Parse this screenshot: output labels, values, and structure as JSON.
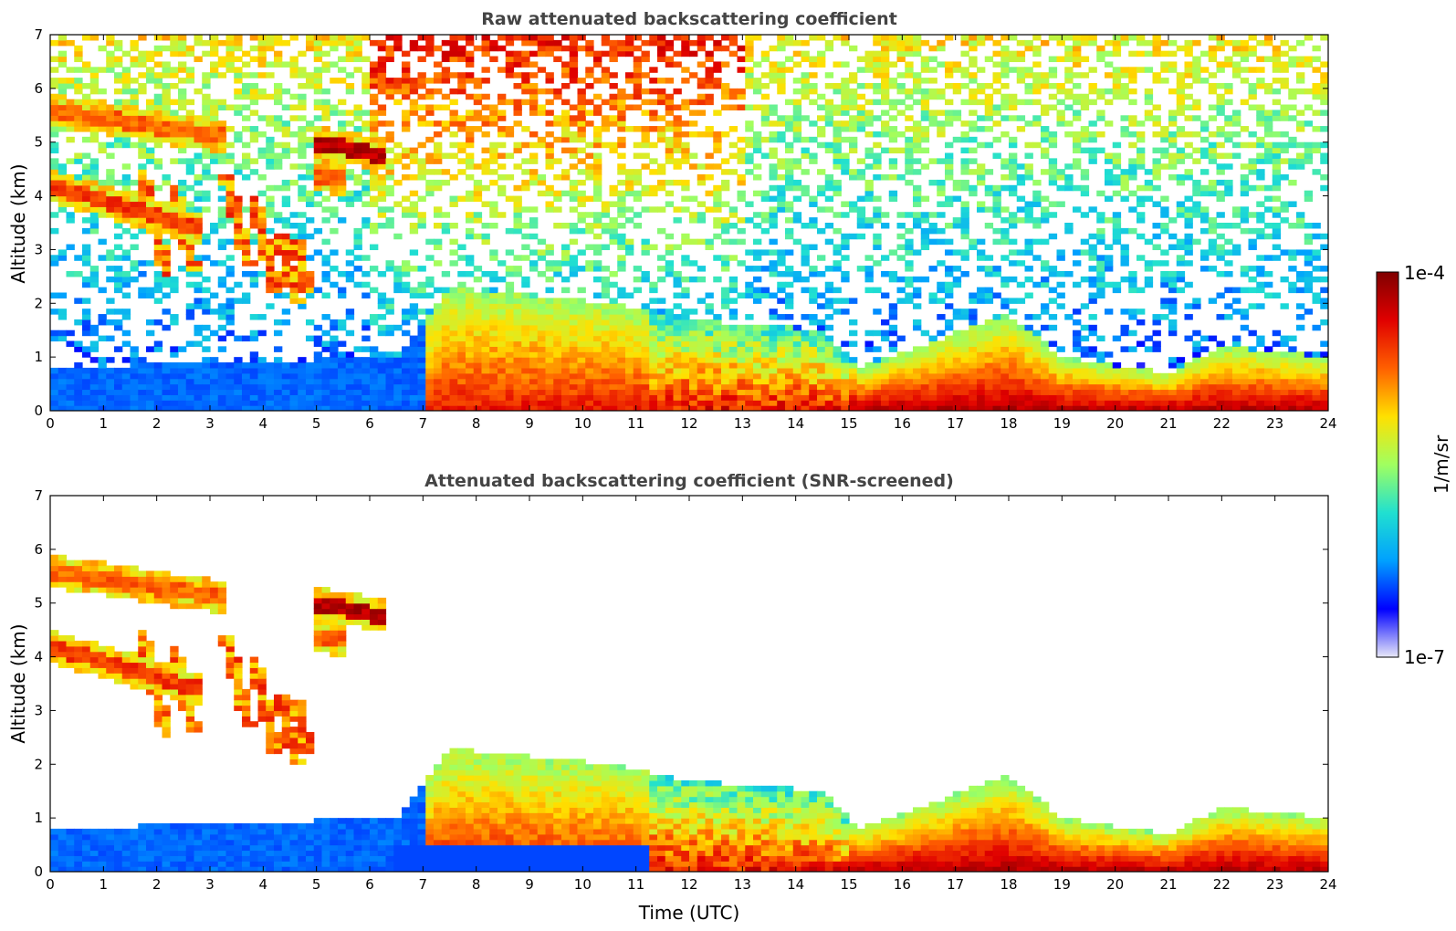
{
  "chart_data": [
    {
      "type": "heatmap",
      "title": "Raw attenuated backscattering coefficient",
      "xlabel": "",
      "ylabel": "Altitude (km)",
      "xlim": [
        0,
        24
      ],
      "ylim": [
        0,
        7
      ],
      "xticks": [
        "0",
        "1",
        "2",
        "3",
        "4",
        "5",
        "6",
        "7",
        "8",
        "9",
        "10",
        "11",
        "12",
        "13",
        "14",
        "15",
        "16",
        "17",
        "18",
        "19",
        "20",
        "21",
        "22",
        "23",
        "24"
      ],
      "yticks": [
        "0",
        "1",
        "2",
        "3",
        "4",
        "5",
        "6",
        "7"
      ],
      "screened": false,
      "layer_top_km": [
        {
          "time": 0,
          "top": 0.8
        },
        {
          "time": 6.5,
          "top": 1.0
        },
        {
          "time": 7.5,
          "top": 2.3
        },
        {
          "time": 10.5,
          "top": 2.0
        },
        {
          "time": 12,
          "top": 1.7
        },
        {
          "time": 14.5,
          "top": 1.5
        },
        {
          "time": 15.2,
          "top": 0.8
        },
        {
          "time": 18,
          "top": 1.8
        },
        {
          "time": 19,
          "top": 1.0
        },
        {
          "time": 21,
          "top": 0.7
        },
        {
          "time": 22,
          "top": 1.2
        },
        {
          "time": 24,
          "top": 1.0
        }
      ],
      "cloud_segments": [
        {
          "t0": 0.0,
          "t1": 2.8,
          "h0": 4.2,
          "h1": 3.4,
          "level": 0.85
        },
        {
          "t0": 0.0,
          "t1": 3.3,
          "h0": 5.6,
          "h1": 5.1,
          "level": 0.8
        },
        {
          "t0": 5.0,
          "t1": 6.3,
          "h0": 5.0,
          "h1": 4.75,
          "level": 0.98
        },
        {
          "t0": 5.0,
          "t1": 5.5,
          "h0": 4.4,
          "h1": 4.3,
          "level": 0.8
        }
      ],
      "fallstreaks": [
        {
          "t": 1.7,
          "top": 4.5,
          "bottom": 2.5
        },
        {
          "t": 2.3,
          "top": 4.2,
          "bottom": 2.6
        },
        {
          "t": 3.3,
          "top": 4.4,
          "bottom": 2.7
        },
        {
          "t": 3.8,
          "top": 4.0,
          "bottom": 2.2
        },
        {
          "t": 4.3,
          "top": 3.3,
          "bottom": 2.0
        },
        {
          "t": 4.6,
          "top": 3.2,
          "bottom": 2.2
        }
      ]
    },
    {
      "type": "heatmap",
      "title": "Attenuated backscattering coefficient (SNR-screened)",
      "xlabel": "Time (UTC)",
      "ylabel": "Altitude (km)",
      "xlim": [
        0,
        24
      ],
      "ylim": [
        0,
        7
      ],
      "xticks": [
        "0",
        "1",
        "2",
        "3",
        "4",
        "5",
        "6",
        "7",
        "8",
        "9",
        "10",
        "11",
        "12",
        "13",
        "14",
        "15",
        "16",
        "17",
        "18",
        "19",
        "20",
        "21",
        "22",
        "23",
        "24"
      ],
      "yticks": [
        "0",
        "1",
        "2",
        "3",
        "4",
        "5",
        "6",
        "7"
      ],
      "screened": true,
      "layer_top_km": [
        {
          "time": 0,
          "top": 0.8
        },
        {
          "time": 6.5,
          "top": 1.0
        },
        {
          "time": 7.5,
          "top": 2.3
        },
        {
          "time": 10.5,
          "top": 2.0
        },
        {
          "time": 12,
          "top": 1.7
        },
        {
          "time": 14.5,
          "top": 1.5
        },
        {
          "time": 15.2,
          "top": 0.8
        },
        {
          "time": 18,
          "top": 1.8
        },
        {
          "time": 19,
          "top": 1.0
        },
        {
          "time": 21,
          "top": 0.7
        },
        {
          "time": 22,
          "top": 1.2
        },
        {
          "time": 24,
          "top": 1.0
        }
      ],
      "cloud_segments": [
        {
          "t0": 0.0,
          "t1": 2.8,
          "h0": 4.2,
          "h1": 3.4,
          "level": 0.85
        },
        {
          "t0": 0.0,
          "t1": 3.3,
          "h0": 5.6,
          "h1": 5.1,
          "level": 0.8
        },
        {
          "t0": 5.0,
          "t1": 6.3,
          "h0": 5.0,
          "h1": 4.75,
          "level": 0.98
        },
        {
          "t0": 5.0,
          "t1": 5.5,
          "h0": 4.4,
          "h1": 4.3,
          "level": 0.8
        }
      ],
      "fallstreaks": [
        {
          "t": 1.7,
          "top": 4.5,
          "bottom": 2.5
        },
        {
          "t": 2.3,
          "top": 4.2,
          "bottom": 2.6
        },
        {
          "t": 3.3,
          "top": 4.4,
          "bottom": 2.7
        },
        {
          "t": 3.8,
          "top": 4.0,
          "bottom": 2.2
        },
        {
          "t": 4.3,
          "top": 3.3,
          "bottom": 2.0
        },
        {
          "t": 4.6,
          "top": 3.2,
          "bottom": 2.2
        }
      ]
    }
  ],
  "colorbar": {
    "label": "1/m/sr",
    "max_label": "1e-4",
    "min_label": "1e-7",
    "scale": "log",
    "range": [
      1e-07,
      0.0001
    ],
    "colormap": "jet",
    "colors": [
      "#e8e8f8",
      "#0000ff",
      "#00a0ff",
      "#20e0d0",
      "#a0ff60",
      "#ffe000",
      "#ff6000",
      "#e00000",
      "#800000"
    ]
  }
}
